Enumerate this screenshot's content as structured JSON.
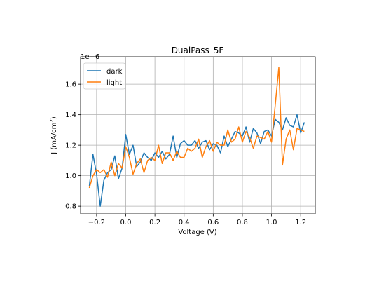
{
  "chart_data": {
    "type": "line",
    "title": "DualPass_5F",
    "xlabel": "Voltage (V)",
    "ylabel": "J (mA/cm²)",
    "y_offset_label": "1e−6",
    "xlim": [
      -0.31,
      1.3
    ],
    "ylim": [
      0.75,
      1.78
    ],
    "x_ticks": [
      -0.2,
      0.0,
      0.2,
      0.4,
      0.6,
      0.8,
      1.0,
      1.2
    ],
    "x_tick_labels": [
      "−0.2",
      "0.0",
      "0.2",
      "0.4",
      "0.6",
      "0.8",
      "1.0",
      "1.2"
    ],
    "y_ticks": [
      0.8,
      1.0,
      1.2,
      1.4,
      1.6
    ],
    "y_tick_labels": [
      "0.8",
      "1.0",
      "1.2",
      "1.4",
      "1.6"
    ],
    "grid": true,
    "legend_position": "upper-left",
    "x": [
      -0.25,
      -0.225,
      -0.2,
      -0.175,
      -0.15,
      -0.125,
      -0.1,
      -0.075,
      -0.05,
      -0.025,
      0.0,
      0.025,
      0.05,
      0.075,
      0.1,
      0.125,
      0.15,
      0.175,
      0.2,
      0.225,
      0.25,
      0.275,
      0.3,
      0.325,
      0.35,
      0.375,
      0.4,
      0.425,
      0.45,
      0.475,
      0.5,
      0.525,
      0.55,
      0.575,
      0.6,
      0.625,
      0.65,
      0.675,
      0.7,
      0.725,
      0.75,
      0.775,
      0.8,
      0.825,
      0.85,
      0.875,
      0.9,
      0.925,
      0.95,
      0.975,
      1.0,
      1.025,
      1.05,
      1.075,
      1.1,
      1.125,
      1.15,
      1.175,
      1.2,
      1.225
    ],
    "series": [
      {
        "name": "dark",
        "color": "#1f77b4",
        "values": [
          0.93,
          1.14,
          1.01,
          0.8,
          0.97,
          1.02,
          1.04,
          1.13,
          0.98,
          1.05,
          1.27,
          1.14,
          1.2,
          1.06,
          1.09,
          1.15,
          1.12,
          1.1,
          1.15,
          1.12,
          1.16,
          1.11,
          1.14,
          1.26,
          1.12,
          1.21,
          1.23,
          1.2,
          1.2,
          1.23,
          1.18,
          1.22,
          1.23,
          1.17,
          1.21,
          1.2,
          1.15,
          1.26,
          1.19,
          1.24,
          1.29,
          1.28,
          1.26,
          1.32,
          1.22,
          1.31,
          1.28,
          1.21,
          1.29,
          1.3,
          1.26,
          1.37,
          1.35,
          1.3,
          1.38,
          1.33,
          1.32,
          1.4,
          1.28,
          1.35
        ]
      },
      {
        "name": "light",
        "color": "#ff7f0e",
        "values": [
          0.92,
          1.0,
          1.04,
          1.02,
          1.04,
          0.99,
          1.09,
          1.0,
          1.08,
          1.05,
          1.19,
          1.12,
          1.01,
          1.08,
          1.11,
          1.02,
          1.1,
          1.12,
          1.1,
          1.2,
          1.08,
          1.15,
          1.15,
          1.1,
          1.16,
          1.12,
          1.12,
          1.18,
          1.16,
          1.18,
          1.24,
          1.12,
          1.19,
          1.23,
          1.16,
          1.22,
          1.2,
          1.2,
          1.3,
          1.22,
          1.24,
          1.32,
          1.22,
          1.29,
          1.25,
          1.18,
          1.26,
          1.25,
          1.24,
          1.29,
          1.22,
          1.46,
          1.71,
          1.07,
          1.24,
          1.3,
          1.17,
          1.31,
          1.3,
          1.29
        ]
      }
    ]
  }
}
